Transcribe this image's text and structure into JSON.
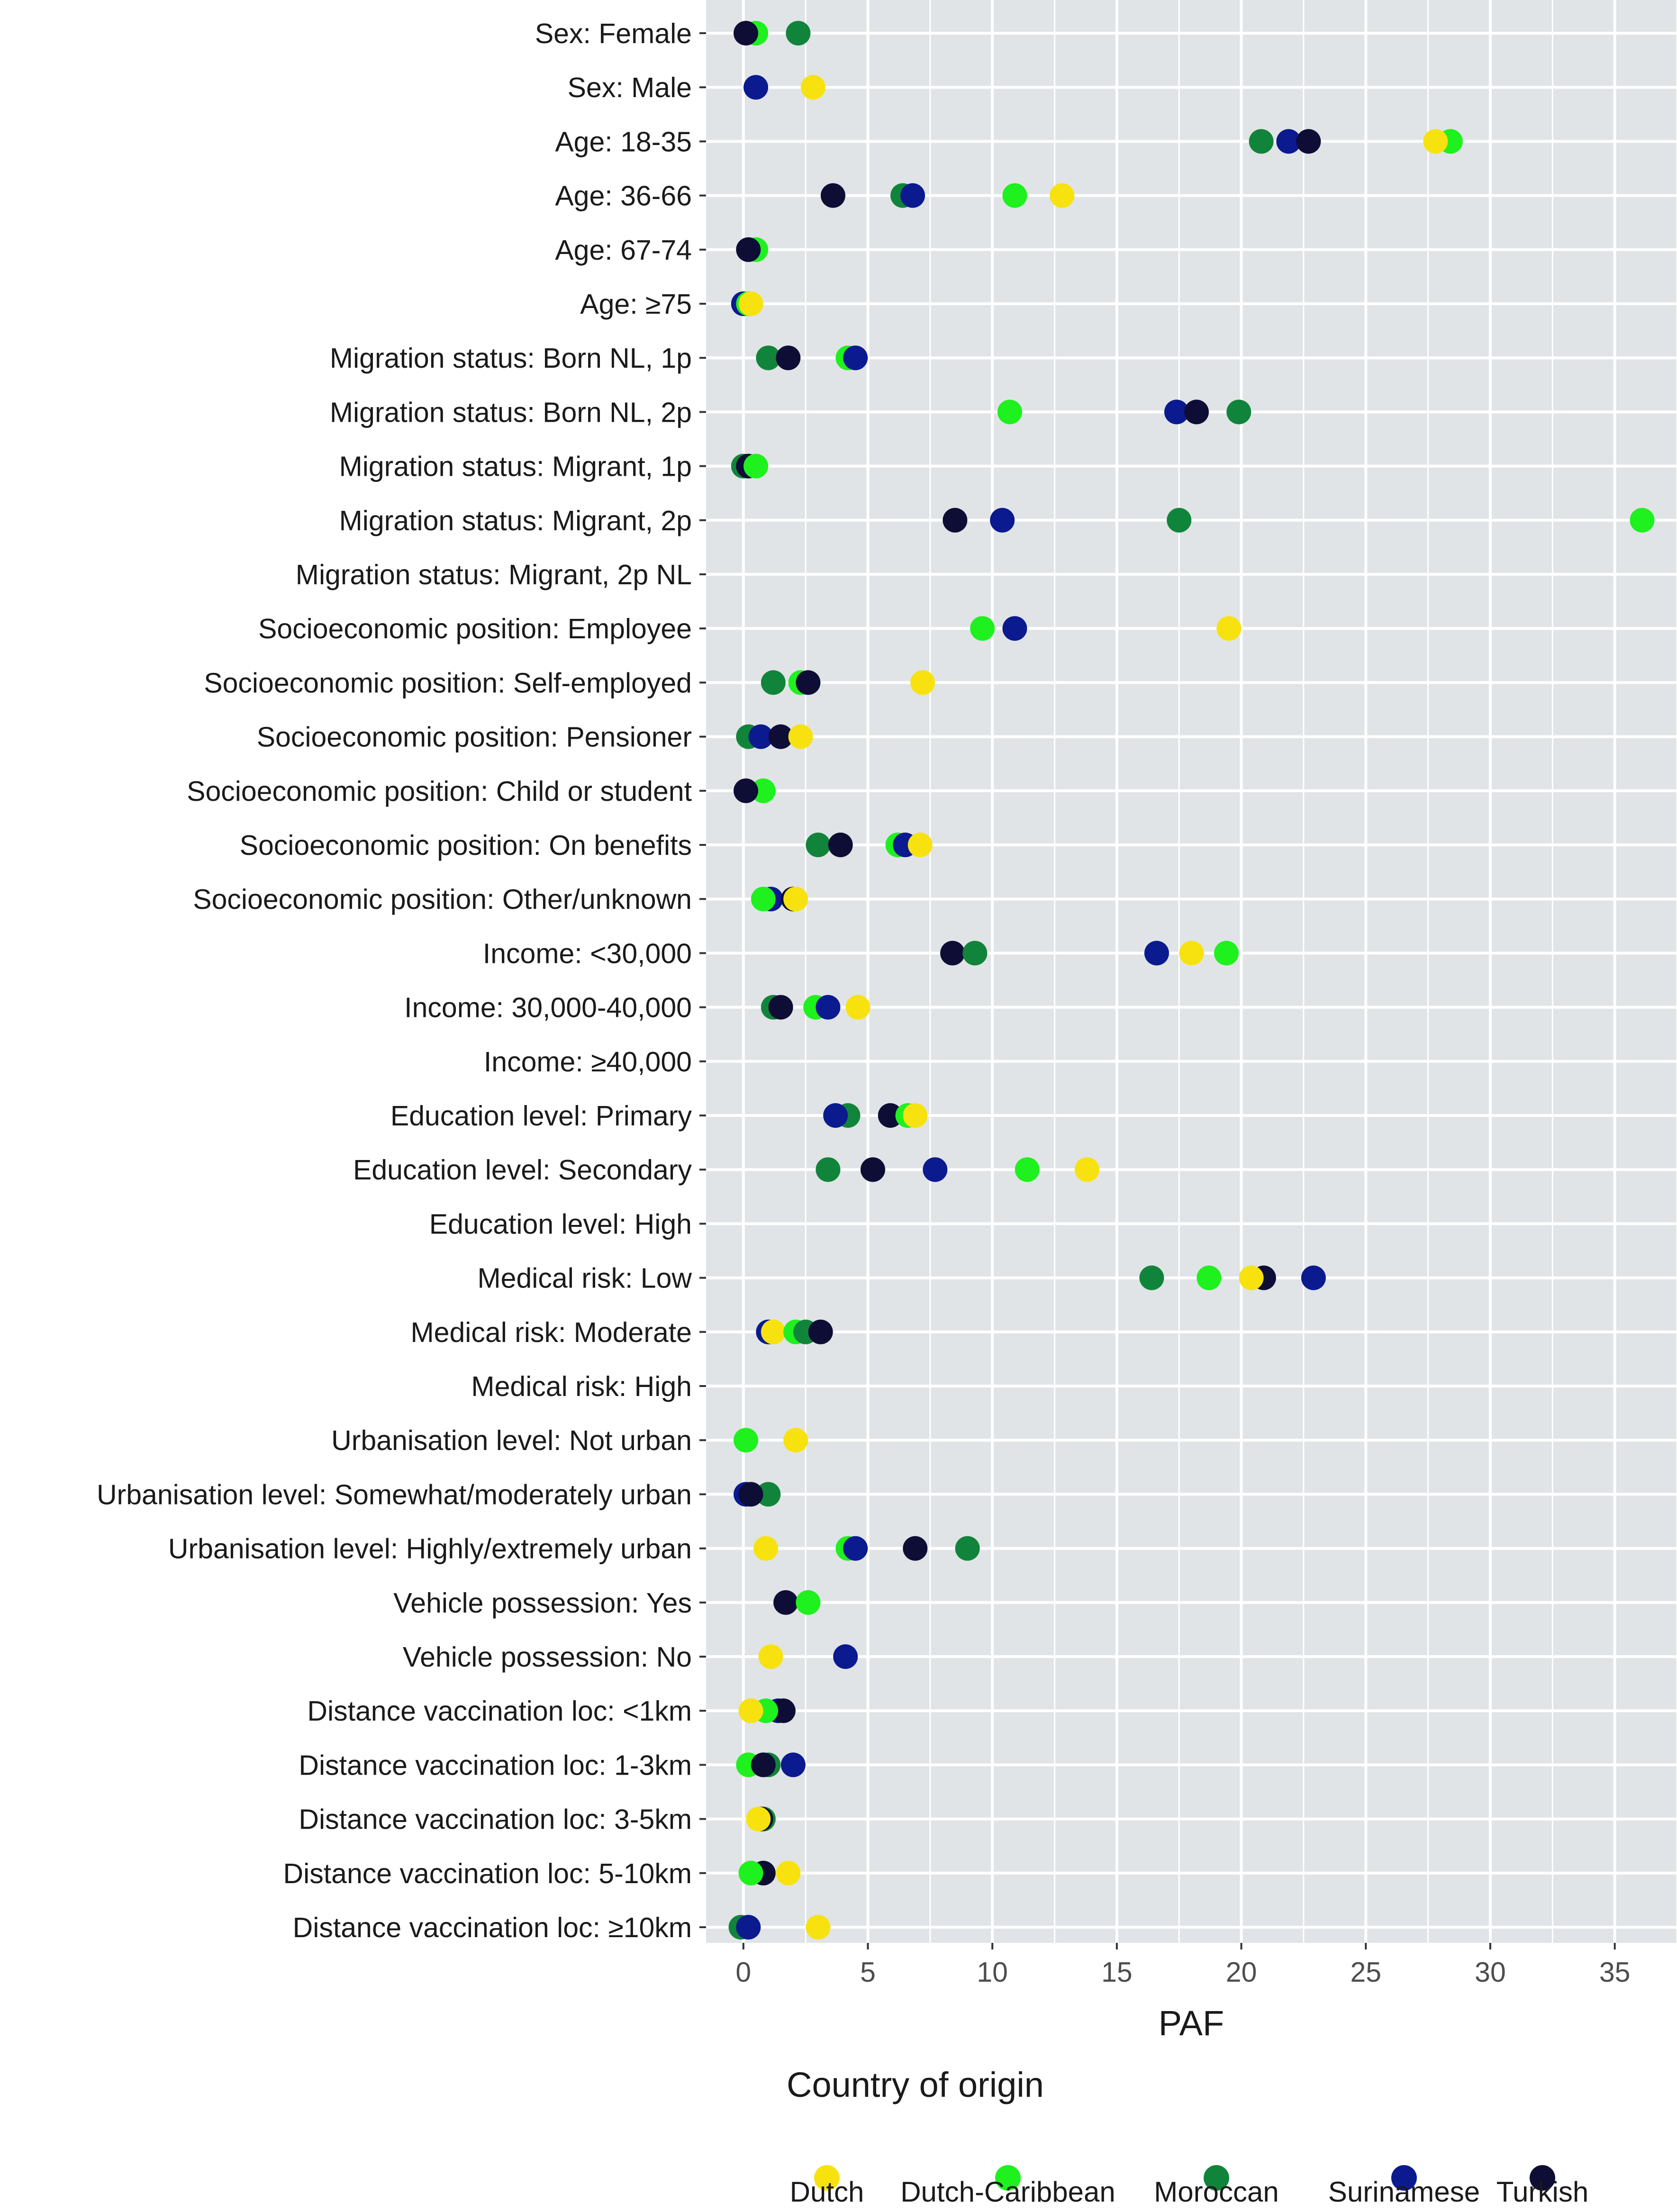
{
  "chart_data": {
    "type": "scatter",
    "xlabel": "PAF",
    "ylabel": "",
    "xlim": [
      -1.5,
      37.5
    ],
    "xticks": [
      0,
      5,
      10,
      15,
      20,
      25,
      30,
      35
    ],
    "grid": true,
    "legend": {
      "title": "Country of origin",
      "position": "bottom"
    },
    "series": [
      {
        "name": "Dutch",
        "color": "#F7E20F"
      },
      {
        "name": "Dutch-Caribbean",
        "color": "#1EF11E"
      },
      {
        "name": "Moroccan",
        "color": "#11843B"
      },
      {
        "name": "Surinamese",
        "color": "#0B1A8F"
      },
      {
        "name": "Turkish",
        "color": "#0D0D35"
      }
    ],
    "categories": [
      "Sex: Female",
      "Sex: Male",
      "Age: 18-35",
      "Age: 36-66",
      "Age: 67-74",
      "Age: ≥75",
      "Migration status: Born NL, 1p",
      "Migration status: Born NL, 2p",
      "Migration status: Migrant, 1p",
      "Migration status: Migrant, 2p",
      "Migration status: Migrant, 2p NL",
      "Socioeconomic position: Employee",
      "Socioeconomic position: Self-employed",
      "Socioeconomic position: Pensioner",
      "Socioeconomic position: Child or student",
      "Socioeconomic position: On benefits",
      "Socioeconomic position: Other/unknown",
      "Income: <30,000",
      "Income: 30,000-40,000",
      "Income: ≥40,000",
      "Education level: Primary",
      "Education level: Secondary",
      "Education level: High",
      "Medical risk: Low",
      "Medical risk: Moderate",
      "Medical risk: High",
      "Urbanisation level: Not urban",
      "Urbanisation level: Somewhat/moderately urban",
      "Urbanisation level: Highly/extremely urban",
      "Vehicle possession: Yes",
      "Vehicle possession: No",
      "Distance vaccination loc: <1km",
      "Distance vaccination loc: 1-3km",
      "Distance vaccination loc: 3-5km",
      "Distance vaccination loc: 5-10km",
      "Distance vaccination loc: ≥10km"
    ],
    "points": [
      {
        "category": "Sex: Female",
        "series": "Dutch-Caribbean",
        "x": 0.5
      },
      {
        "category": "Sex: Female",
        "series": "Moroccan",
        "x": 2.2
      },
      {
        "category": "Sex: Female",
        "series": "Turkish",
        "x": 0.1
      },
      {
        "category": "Sex: Male",
        "series": "Surinamese",
        "x": 0.5
      },
      {
        "category": "Sex: Male",
        "series": "Dutch",
        "x": 2.8
      },
      {
        "category": "Age: 18-35",
        "series": "Moroccan",
        "x": 20.8
      },
      {
        "category": "Age: 18-35",
        "series": "Surinamese",
        "x": 21.9
      },
      {
        "category": "Age: 18-35",
        "series": "Turkish",
        "x": 22.7
      },
      {
        "category": "Age: 18-35",
        "series": "Dutch-Caribbean",
        "x": 28.4
      },
      {
        "category": "Age: 18-35",
        "series": "Dutch",
        "x": 27.8
      },
      {
        "category": "Age: 36-66",
        "series": "Turkish",
        "x": 3.6
      },
      {
        "category": "Age: 36-66",
        "series": "Moroccan",
        "x": 6.4
      },
      {
        "category": "Age: 36-66",
        "series": "Surinamese",
        "x": 6.8
      },
      {
        "category": "Age: 36-66",
        "series": "Dutch-Caribbean",
        "x": 10.9
      },
      {
        "category": "Age: 36-66",
        "series": "Dutch",
        "x": 12.8
      },
      {
        "category": "Age: 67-74",
        "series": "Dutch-Caribbean",
        "x": 0.5
      },
      {
        "category": "Age: 67-74",
        "series": "Turkish",
        "x": 0.2
      },
      {
        "category": "Age: ≥75",
        "series": "Surinamese",
        "x": 0.0
      },
      {
        "category": "Age: ≥75",
        "series": "Dutch-Caribbean",
        "x": 0.2
      },
      {
        "category": "Age: ≥75",
        "series": "Dutch",
        "x": 0.3
      },
      {
        "category": "Migration status: Born NL, 1p",
        "series": "Moroccan",
        "x": 1.0
      },
      {
        "category": "Migration status: Born NL, 1p",
        "series": "Turkish",
        "x": 1.8
      },
      {
        "category": "Migration status: Born NL, 1p",
        "series": "Dutch-Caribbean",
        "x": 4.2
      },
      {
        "category": "Migration status: Born NL, 1p",
        "series": "Surinamese",
        "x": 4.5
      },
      {
        "category": "Migration status: Born NL, 2p",
        "series": "Dutch-Caribbean",
        "x": 10.7
      },
      {
        "category": "Migration status: Born NL, 2p",
        "series": "Surinamese",
        "x": 17.4
      },
      {
        "category": "Migration status: Born NL, 2p",
        "series": "Turkish",
        "x": 18.2
      },
      {
        "category": "Migration status: Born NL, 2p",
        "series": "Moroccan",
        "x": 19.9
      },
      {
        "category": "Migration status: Migrant, 1p",
        "series": "Moroccan",
        "x": 0.0
      },
      {
        "category": "Migration status: Migrant, 1p",
        "series": "Turkish",
        "x": 0.2
      },
      {
        "category": "Migration status: Migrant, 1p",
        "series": "Dutch-Caribbean",
        "x": 0.5
      },
      {
        "category": "Migration status: Migrant, 2p",
        "series": "Turkish",
        "x": 8.5
      },
      {
        "category": "Migration status: Migrant, 2p",
        "series": "Surinamese",
        "x": 10.4
      },
      {
        "category": "Migration status: Migrant, 2p",
        "series": "Moroccan",
        "x": 17.5
      },
      {
        "category": "Migration status: Migrant, 2p",
        "series": "Dutch-Caribbean",
        "x": 36.1
      },
      {
        "category": "Socioeconomic position: Employee",
        "series": "Dutch-Caribbean",
        "x": 9.6
      },
      {
        "category": "Socioeconomic position: Employee",
        "series": "Surinamese",
        "x": 10.9
      },
      {
        "category": "Socioeconomic position: Employee",
        "series": "Dutch",
        "x": 19.5
      },
      {
        "category": "Socioeconomic position: Self-employed",
        "series": "Moroccan",
        "x": 1.2
      },
      {
        "category": "Socioeconomic position: Self-employed",
        "series": "Dutch-Caribbean",
        "x": 2.3
      },
      {
        "category": "Socioeconomic position: Self-employed",
        "series": "Turkish",
        "x": 2.6
      },
      {
        "category": "Socioeconomic position: Self-employed",
        "series": "Dutch",
        "x": 7.2
      },
      {
        "category": "Socioeconomic position: Pensioner",
        "series": "Moroccan",
        "x": 0.2
      },
      {
        "category": "Socioeconomic position: Pensioner",
        "series": "Surinamese",
        "x": 0.7
      },
      {
        "category": "Socioeconomic position: Pensioner",
        "series": "Turkish",
        "x": 1.5
      },
      {
        "category": "Socioeconomic position: Pensioner",
        "series": "Dutch",
        "x": 2.3
      },
      {
        "category": "Socioeconomic position: Child or student",
        "series": "Dutch-Caribbean",
        "x": 0.8
      },
      {
        "category": "Socioeconomic position: Child or student",
        "series": "Turkish",
        "x": 0.1
      },
      {
        "category": "Socioeconomic position: On benefits",
        "series": "Moroccan",
        "x": 3.0
      },
      {
        "category": "Socioeconomic position: On benefits",
        "series": "Turkish",
        "x": 3.9
      },
      {
        "category": "Socioeconomic position: On benefits",
        "series": "Dutch-Caribbean",
        "x": 6.2
      },
      {
        "category": "Socioeconomic position: On benefits",
        "series": "Surinamese",
        "x": 6.5
      },
      {
        "category": "Socioeconomic position: On benefits",
        "series": "Dutch",
        "x": 7.1
      },
      {
        "category": "Socioeconomic position: Other/unknown",
        "series": "Surinamese",
        "x": 1.1
      },
      {
        "category": "Socioeconomic position: Other/unknown",
        "series": "Turkish",
        "x": 2.0
      },
      {
        "category": "Socioeconomic position: Other/unknown",
        "series": "Dutch-Caribbean",
        "x": 0.8
      },
      {
        "category": "Socioeconomic position: Other/unknown",
        "series": "Dutch",
        "x": 2.1
      },
      {
        "category": "Income: <30,000",
        "series": "Turkish",
        "x": 8.4
      },
      {
        "category": "Income: <30,000",
        "series": "Moroccan",
        "x": 9.3
      },
      {
        "category": "Income: <30,000",
        "series": "Surinamese",
        "x": 16.6
      },
      {
        "category": "Income: <30,000",
        "series": "Dutch",
        "x": 18.0
      },
      {
        "category": "Income: <30,000",
        "series": "Dutch-Caribbean",
        "x": 19.4
      },
      {
        "category": "Income: 30,000-40,000",
        "series": "Moroccan",
        "x": 1.2
      },
      {
        "category": "Income: 30,000-40,000",
        "series": "Turkish",
        "x": 1.5
      },
      {
        "category": "Income: 30,000-40,000",
        "series": "Dutch-Caribbean",
        "x": 2.9
      },
      {
        "category": "Income: 30,000-40,000",
        "series": "Surinamese",
        "x": 3.4
      },
      {
        "category": "Income: 30,000-40,000",
        "series": "Dutch",
        "x": 4.6
      },
      {
        "category": "Education level: Primary",
        "series": "Moroccan",
        "x": 4.2
      },
      {
        "category": "Education level: Primary",
        "series": "Surinamese",
        "x": 3.7
      },
      {
        "category": "Education level: Primary",
        "series": "Turkish",
        "x": 5.9
      },
      {
        "category": "Education level: Primary",
        "series": "Dutch-Caribbean",
        "x": 6.6
      },
      {
        "category": "Education level: Primary",
        "series": "Dutch",
        "x": 6.9
      },
      {
        "category": "Education level: Secondary",
        "series": "Moroccan",
        "x": 3.4
      },
      {
        "category": "Education level: Secondary",
        "series": "Turkish",
        "x": 5.2
      },
      {
        "category": "Education level: Secondary",
        "series": "Surinamese",
        "x": 7.7
      },
      {
        "category": "Education level: Secondary",
        "series": "Dutch-Caribbean",
        "x": 11.4
      },
      {
        "category": "Education level: Secondary",
        "series": "Dutch",
        "x": 13.8
      },
      {
        "category": "Medical risk: Low",
        "series": "Moroccan",
        "x": 16.4
      },
      {
        "category": "Medical risk: Low",
        "series": "Dutch-Caribbean",
        "x": 18.7
      },
      {
        "category": "Medical risk: Low",
        "series": "Turkish",
        "x": 20.9
      },
      {
        "category": "Medical risk: Low",
        "series": "Dutch",
        "x": 20.4
      },
      {
        "category": "Medical risk: Low",
        "series": "Surinamese",
        "x": 22.9
      },
      {
        "category": "Medical risk: Moderate",
        "series": "Surinamese",
        "x": 1.0
      },
      {
        "category": "Medical risk: Moderate",
        "series": "Dutch",
        "x": 1.2
      },
      {
        "category": "Medical risk: Moderate",
        "series": "Dutch-Caribbean",
        "x": 2.1
      },
      {
        "category": "Medical risk: Moderate",
        "series": "Moroccan",
        "x": 2.5
      },
      {
        "category": "Medical risk: Moderate",
        "series": "Turkish",
        "x": 3.1
      },
      {
        "category": "Urbanisation level: Not urban",
        "series": "Dutch-Caribbean",
        "x": 0.1
      },
      {
        "category": "Urbanisation level: Not urban",
        "series": "Dutch",
        "x": 2.1
      },
      {
        "category": "Urbanisation level: Somewhat/moderately urban",
        "series": "Surinamese",
        "x": 0.1
      },
      {
        "category": "Urbanisation level: Somewhat/moderately urban",
        "series": "Moroccan",
        "x": 1.0
      },
      {
        "category": "Urbanisation level: Somewhat/moderately urban",
        "series": "Turkish",
        "x": 0.3
      },
      {
        "category": "Urbanisation level: Highly/extremely urban",
        "series": "Dutch",
        "x": 0.9
      },
      {
        "category": "Urbanisation level: Highly/extremely urban",
        "series": "Dutch-Caribbean",
        "x": 4.2
      },
      {
        "category": "Urbanisation level: Highly/extremely urban",
        "series": "Surinamese",
        "x": 4.5
      },
      {
        "category": "Urbanisation level: Highly/extremely urban",
        "series": "Turkish",
        "x": 6.9
      },
      {
        "category": "Urbanisation level: Highly/extremely urban",
        "series": "Moroccan",
        "x": 9.0
      },
      {
        "category": "Vehicle possession: Yes",
        "series": "Turkish",
        "x": 1.7
      },
      {
        "category": "Vehicle possession: Yes",
        "series": "Dutch-Caribbean",
        "x": 2.6
      },
      {
        "category": "Vehicle possession: No",
        "series": "Dutch",
        "x": 1.1
      },
      {
        "category": "Vehicle possession: No",
        "series": "Surinamese",
        "x": 4.1
      },
      {
        "category": "Distance vaccination loc: <1km",
        "series": "Surinamese",
        "x": 1.4
      },
      {
        "category": "Distance vaccination loc: <1km",
        "series": "Turkish",
        "x": 1.6
      },
      {
        "category": "Distance vaccination loc: <1km",
        "series": "Dutch-Caribbean",
        "x": 0.9
      },
      {
        "category": "Distance vaccination loc: <1km",
        "series": "Dutch",
        "x": 0.3
      },
      {
        "category": "Distance vaccination loc: 1-3km",
        "series": "Dutch-Caribbean",
        "x": 0.2
      },
      {
        "category": "Distance vaccination loc: 1-3km",
        "series": "Moroccan",
        "x": 1.0
      },
      {
        "category": "Distance vaccination loc: 1-3km",
        "series": "Turkish",
        "x": 0.8
      },
      {
        "category": "Distance vaccination loc: 1-3km",
        "series": "Surinamese",
        "x": 2.0
      },
      {
        "category": "Distance vaccination loc: 3-5km",
        "series": "Moroccan",
        "x": 0.8
      },
      {
        "category": "Distance vaccination loc: 3-5km",
        "series": "Turkish",
        "x": 0.7
      },
      {
        "category": "Distance vaccination loc: 3-5km",
        "series": "Dutch",
        "x": 0.6
      },
      {
        "category": "Distance vaccination loc: 5-10km",
        "series": "Turkish",
        "x": 0.8
      },
      {
        "category": "Distance vaccination loc: 5-10km",
        "series": "Dutch-Caribbean",
        "x": 0.3
      },
      {
        "category": "Distance vaccination loc: 5-10km",
        "series": "Dutch",
        "x": 1.8
      },
      {
        "category": "Distance vaccination loc: ≥10km",
        "series": "Moroccan",
        "x": -0.1
      },
      {
        "category": "Distance vaccination loc: ≥10km",
        "series": "Surinamese",
        "x": 0.2
      },
      {
        "category": "Distance vaccination loc: ≥10km",
        "series": "Dutch",
        "x": 3.0
      }
    ]
  }
}
